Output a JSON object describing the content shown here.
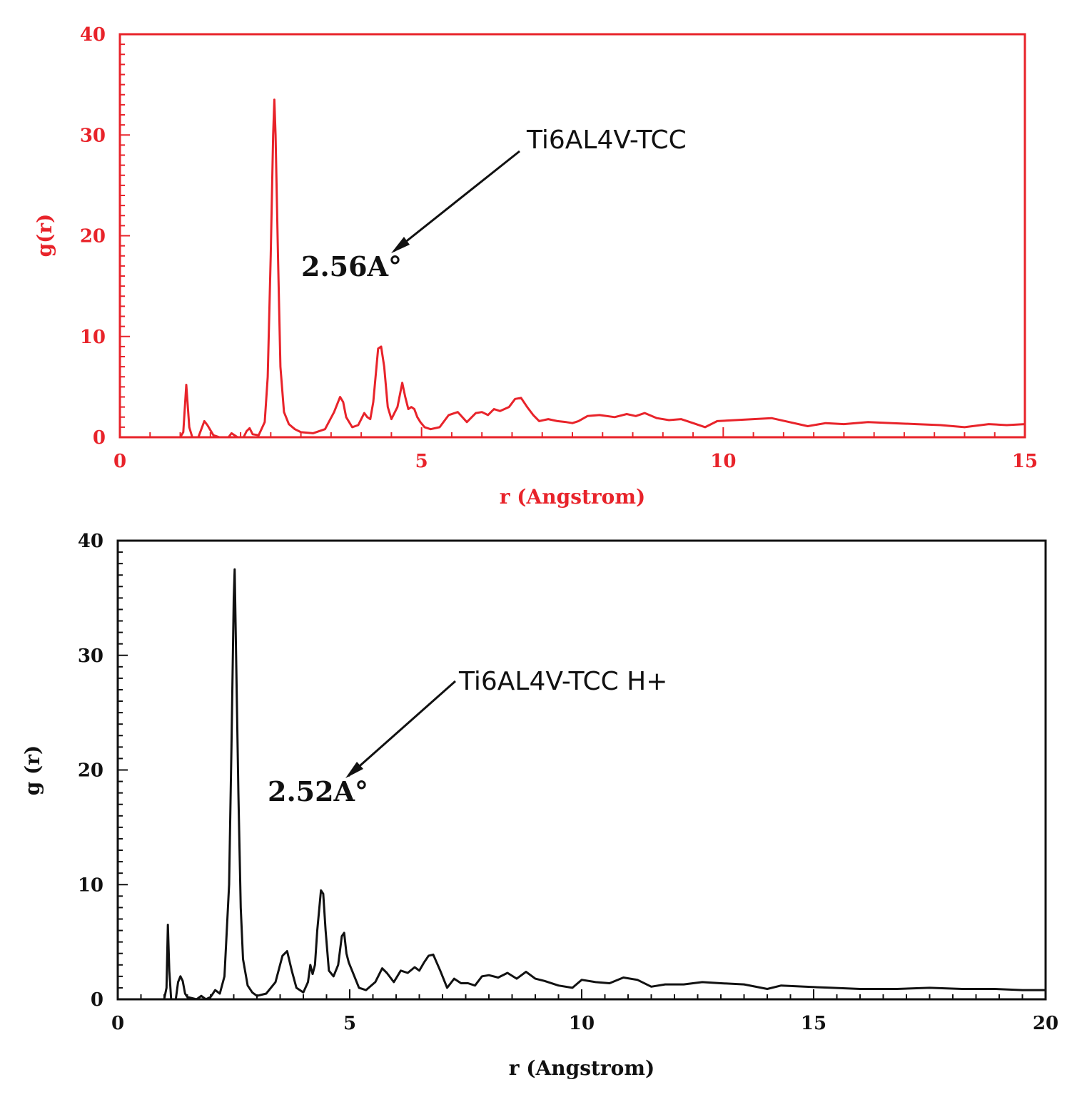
{
  "chart_data": [
    {
      "type": "line",
      "color": "#e8232a",
      "xlabel": "r (Angstrom)",
      "ylabel": "g(r)",
      "xlim": [
        0,
        15
      ],
      "ylim": [
        0,
        40
      ],
      "xticks": [
        "0",
        "5",
        "10",
        "15"
      ],
      "yticks": [
        "0",
        "10",
        "20",
        "30",
        "40"
      ],
      "grid": false,
      "series": [
        {
          "name": "Ti6AL4V-TCC",
          "x": [
            0,
            1.0,
            1.05,
            1.1,
            1.15,
            1.2,
            1.3,
            1.4,
            1.45,
            1.55,
            1.65,
            1.8,
            1.85,
            1.95,
            2.05,
            2.1,
            2.15,
            2.2,
            2.3,
            2.4,
            2.45,
            2.5,
            2.54,
            2.56,
            2.58,
            2.62,
            2.66,
            2.72,
            2.8,
            2.9,
            3.0,
            3.2,
            3.4,
            3.55,
            3.65,
            3.7,
            3.75,
            3.85,
            3.95,
            4.05,
            4.1,
            4.15,
            4.2,
            4.28,
            4.33,
            4.38,
            4.44,
            4.5,
            4.6,
            4.68,
            4.73,
            4.78,
            4.83,
            4.88,
            4.93,
            4.98,
            5.05,
            5.15,
            5.3,
            5.45,
            5.6,
            5.75,
            5.9,
            6.0,
            6.1,
            6.2,
            6.3,
            6.45,
            6.55,
            6.65,
            6.75,
            6.85,
            6.95,
            7.1,
            7.25,
            7.4,
            7.5,
            7.6,
            7.75,
            7.95,
            8.2,
            8.4,
            8.55,
            8.7,
            8.9,
            9.1,
            9.3,
            9.5,
            9.7,
            9.9,
            10.2,
            10.5,
            10.8,
            11.1,
            11.4,
            11.7,
            12.0,
            12.4,
            12.8,
            13.2,
            13.6,
            14.0,
            14.4,
            14.7,
            15.0
          ],
          "y": [
            0,
            0,
            0.5,
            5.2,
            1.0,
            0,
            0,
            1.6,
            1.2,
            0.2,
            0,
            0,
            0.4,
            0,
            0,
            0.6,
            0.9,
            0.3,
            0.2,
            1.5,
            6,
            18,
            30,
            33.5,
            30,
            18,
            7,
            2.5,
            1.3,
            0.8,
            0.5,
            0.4,
            0.8,
            2.5,
            4.0,
            3.5,
            2.0,
            1.0,
            1.2,
            2.4,
            2.0,
            1.8,
            3.5,
            8.8,
            9.0,
            7.0,
            3.0,
            1.8,
            3.0,
            5.4,
            4.0,
            2.8,
            3.0,
            2.8,
            2.0,
            1.5,
            1.0,
            0.8,
            1.0,
            2.2,
            2.5,
            1.5,
            2.4,
            2.5,
            2.2,
            2.8,
            2.6,
            3.0,
            3.8,
            3.9,
            3.0,
            2.2,
            1.6,
            1.8,
            1.6,
            1.5,
            1.4,
            1.6,
            2.1,
            2.2,
            2.0,
            2.3,
            2.1,
            2.4,
            1.9,
            1.7,
            1.8,
            1.4,
            1.0,
            1.6,
            1.7,
            1.8,
            1.9,
            1.5,
            1.1,
            1.4,
            1.3,
            1.5,
            1.4,
            1.3,
            1.2,
            1.0,
            1.3,
            1.2,
            1.3
          ]
        }
      ],
      "annotation": {
        "text": "2.56A°",
        "x": 2.56,
        "y": 18.3
      }
    },
    {
      "type": "line",
      "color": "#111111",
      "xlabel": "r (Angstrom)",
      "ylabel": "g (r)",
      "xlim": [
        0,
        20
      ],
      "ylim": [
        0,
        40
      ],
      "xticks": [
        "0",
        "5",
        "10",
        "15",
        "20"
      ],
      "yticks": [
        "0",
        "10",
        "20",
        "30",
        "40"
      ],
      "grid": false,
      "series": [
        {
          "name": "Ti6AL4V-TCC H+",
          "x": [
            0,
            1.0,
            1.05,
            1.08,
            1.11,
            1.15,
            1.25,
            1.3,
            1.35,
            1.4,
            1.45,
            1.5,
            1.7,
            1.8,
            1.9,
            2.0,
            2.05,
            2.1,
            2.2,
            2.3,
            2.4,
            2.45,
            2.5,
            2.52,
            2.55,
            2.6,
            2.65,
            2.7,
            2.8,
            2.9,
            3.0,
            3.2,
            3.4,
            3.55,
            3.65,
            3.75,
            3.85,
            4.0,
            4.1,
            4.15,
            4.2,
            4.25,
            4.3,
            4.38,
            4.43,
            4.48,
            4.55,
            4.65,
            4.75,
            4.83,
            4.88,
            4.93,
            4.98,
            5.05,
            5.2,
            5.35,
            5.55,
            5.7,
            5.8,
            5.95,
            6.1,
            6.25,
            6.4,
            6.5,
            6.6,
            6.7,
            6.8,
            6.95,
            7.1,
            7.25,
            7.4,
            7.55,
            7.7,
            7.85,
            8.0,
            8.2,
            8.4,
            8.6,
            8.8,
            9.0,
            9.2,
            9.5,
            9.8,
            10.0,
            10.3,
            10.6,
            10.9,
            11.2,
            11.5,
            11.8,
            12.2,
            12.6,
            13.0,
            13.5,
            14.0,
            14.3,
            14.8,
            15.4,
            16.0,
            16.8,
            17.5,
            18.2,
            18.9,
            19.5,
            20.0
          ],
          "y": [
            0,
            0,
            1.0,
            6.5,
            2.5,
            0,
            0,
            1.5,
            2.0,
            1.6,
            0.5,
            0.2,
            0,
            0.3,
            0,
            0.2,
            0.5,
            0.8,
            0.5,
            2.0,
            10,
            22,
            35,
            37.5,
            30,
            18,
            8,
            3.5,
            1.2,
            0.6,
            0.3,
            0.5,
            1.5,
            3.8,
            4.2,
            2.5,
            1.0,
            0.6,
            1.5,
            3.0,
            2.2,
            3.0,
            6.0,
            9.5,
            9.2,
            6.0,
            2.5,
            2.0,
            3.0,
            5.5,
            5.8,
            4.0,
            3.2,
            2.5,
            1.0,
            0.8,
            1.5,
            2.7,
            2.3,
            1.5,
            2.5,
            2.3,
            2.8,
            2.5,
            3.2,
            3.8,
            3.9,
            2.5,
            1.0,
            1.8,
            1.4,
            1.4,
            1.2,
            2.0,
            2.1,
            1.9,
            2.3,
            1.8,
            2.4,
            1.8,
            1.6,
            1.2,
            1.0,
            1.7,
            1.5,
            1.4,
            1.9,
            1.7,
            1.1,
            1.3,
            1.3,
            1.5,
            1.4,
            1.3,
            0.9,
            1.2,
            1.1,
            1.0,
            0.9,
            0.9,
            1.0,
            0.9,
            0.9,
            0.8,
            0.8
          ]
        }
      ],
      "annotation": {
        "text": "2.52A°",
        "x": 2.52,
        "y": 16.6
      }
    }
  ]
}
